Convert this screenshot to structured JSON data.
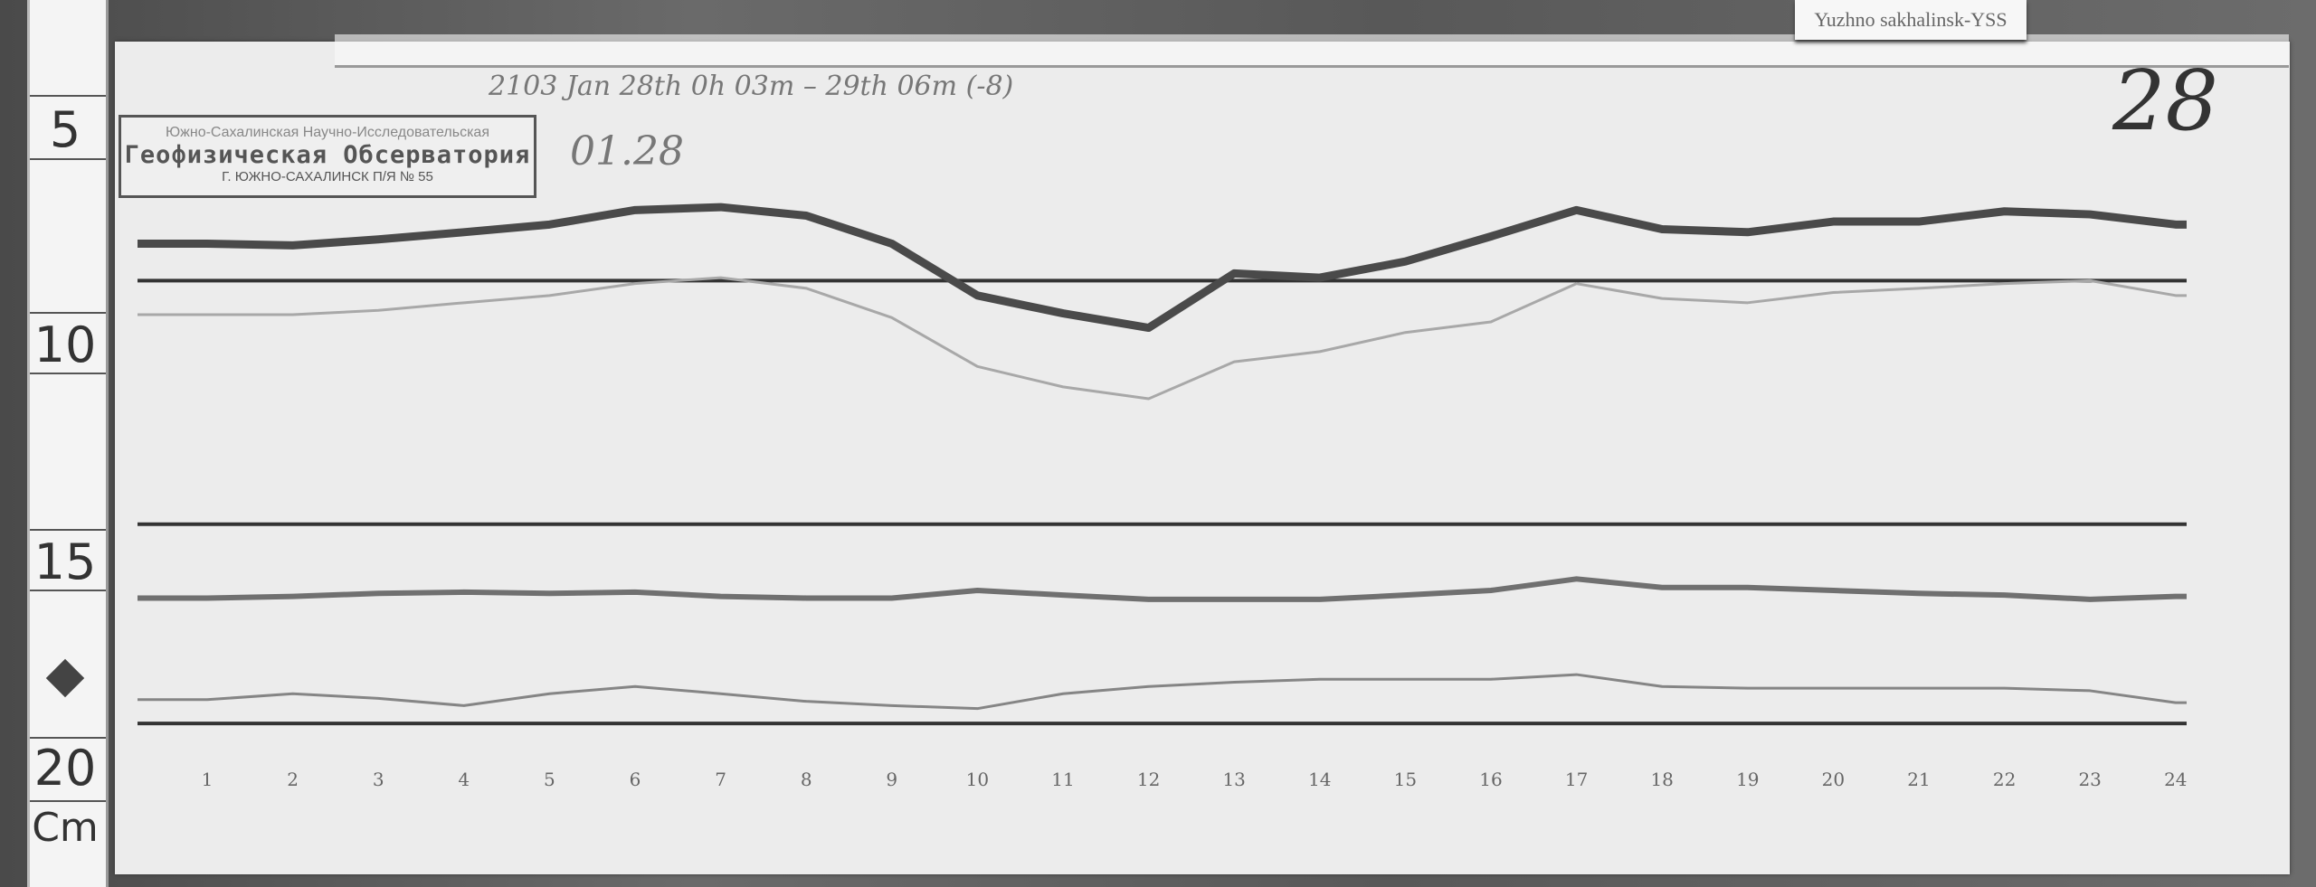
{
  "tag_label": "Yuzhno sakhalinsk-YSS",
  "page_number": "28",
  "stamp": {
    "line1": "Южно-Сахалинская Научно-Исследовательская",
    "line2": "Геофизическая Обсерватория",
    "line3": "Г. ЮЖНО-САХАЛИНСК П/Я № 55"
  },
  "handwriting": {
    "header": "2103 Jan 28th 0h 03m – 29th 06m (-8)",
    "date_code": "01.28"
  },
  "ruler": {
    "labels": [
      "5",
      "10",
      "15",
      "20"
    ],
    "unit": "Cm"
  },
  "chart_data": {
    "type": "line",
    "x_unit": "hour",
    "y_unit": "cm",
    "categories": [
      "1",
      "2",
      "3",
      "4",
      "5",
      "6",
      "7",
      "8",
      "9",
      "10",
      "11",
      "12",
      "13",
      "14",
      "15",
      "16",
      "17",
      "18",
      "19",
      "20",
      "21",
      "22",
      "23",
      "24"
    ],
    "x": [
      1,
      2,
      3,
      4,
      5,
      6,
      7,
      8,
      9,
      10,
      11,
      12,
      13,
      14,
      15,
      16,
      17,
      18,
      19,
      20,
      21,
      22,
      23,
      24
    ],
    "ylim": [
      5,
      20
    ],
    "baselines": [
      8.54,
      14.27,
      18.96
    ],
    "series": [
      {
        "values": [
          7.67,
          7.71,
          7.57,
          7.4,
          7.22,
          6.88,
          6.81,
          7.01,
          7.67,
          8.89,
          9.31,
          9.65,
          8.37,
          8.47,
          8.09,
          7.5,
          6.88,
          7.33,
          7.4,
          7.15,
          7.15,
          6.91,
          6.98,
          7.22
        ],
        "color": "#4a4a4a"
      },
      {
        "values": [
          9.34,
          9.34,
          9.24,
          9.06,
          8.89,
          8.61,
          8.47,
          8.72,
          9.41,
          10.56,
          11.04,
          11.32,
          10.45,
          10.21,
          9.76,
          9.51,
          8.61,
          8.96,
          9.06,
          8.82,
          8.72,
          8.61,
          8.54,
          8.89
        ],
        "color": "#a8a8a8"
      },
      {
        "values": [
          16.01,
          15.97,
          15.9,
          15.87,
          15.9,
          15.87,
          15.97,
          16.01,
          16.01,
          15.83,
          15.94,
          16.04,
          16.04,
          16.04,
          15.94,
          15.83,
          15.56,
          15.76,
          15.76,
          15.83,
          15.9,
          15.94,
          16.04,
          15.97
        ],
        "color": "#707070"
      },
      {
        "values": [
          18.4,
          18.26,
          18.37,
          18.54,
          18.26,
          18.09,
          18.26,
          18.44,
          18.54,
          18.61,
          18.26,
          18.09,
          17.99,
          17.92,
          17.92,
          17.92,
          17.81,
          18.09,
          18.13,
          18.13,
          18.13,
          18.13,
          18.19,
          18.47
        ],
        "color": "#858585"
      }
    ]
  }
}
